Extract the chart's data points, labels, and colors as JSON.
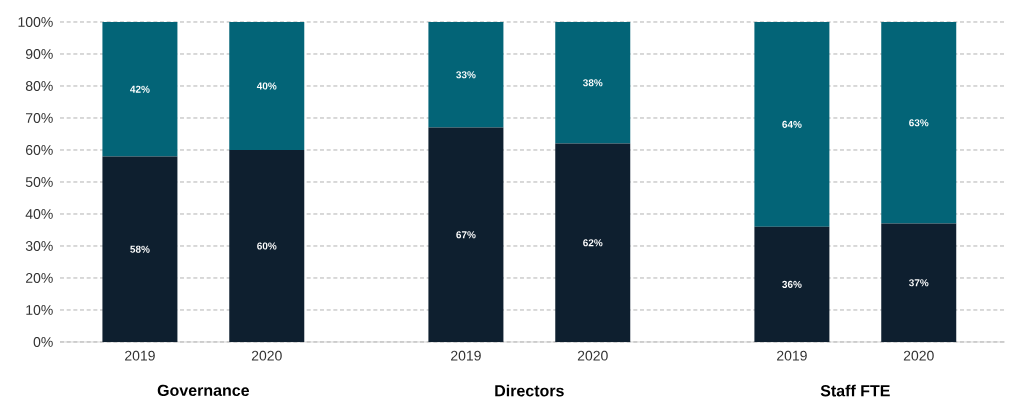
{
  "chart_data": {
    "type": "bar",
    "stacked": true,
    "categories": [
      "2019",
      "2020",
      "2019",
      "2020",
      "2019",
      "2020"
    ],
    "series": [
      {
        "color": "#0e1f2f",
        "values": [
          58,
          60,
          67,
          62,
          36,
          37
        ],
        "value_labels": [
          "58%",
          "60%",
          "67%",
          "62%",
          "36%",
          "37%"
        ]
      },
      {
        "color": "#036477",
        "values": [
          42,
          40,
          33,
          38,
          64,
          63
        ],
        "value_labels": [
          "42%",
          "40%",
          "33%",
          "38%",
          "64%",
          "63%"
        ]
      }
    ],
    "annotations": [
      "Governance",
      "Directors",
      "Staff FTE"
    ],
    "ylim": [
      0,
      100
    ],
    "yticks": [
      {
        "value": 0,
        "label": "0%"
      },
      {
        "value": 10,
        "label": "10%"
      },
      {
        "value": 20,
        "label": "20%"
      },
      {
        "value": 30,
        "label": "30%"
      },
      {
        "value": 40,
        "label": "40%"
      },
      {
        "value": 50,
        "label": "50%"
      },
      {
        "value": 60,
        "label": "60%"
      },
      {
        "value": 70,
        "label": "70%"
      },
      {
        "value": 80,
        "label": "80%"
      },
      {
        "value": 90,
        "label": "90%"
      },
      {
        "value": 100,
        "label": "100%"
      }
    ],
    "grid": "y"
  }
}
